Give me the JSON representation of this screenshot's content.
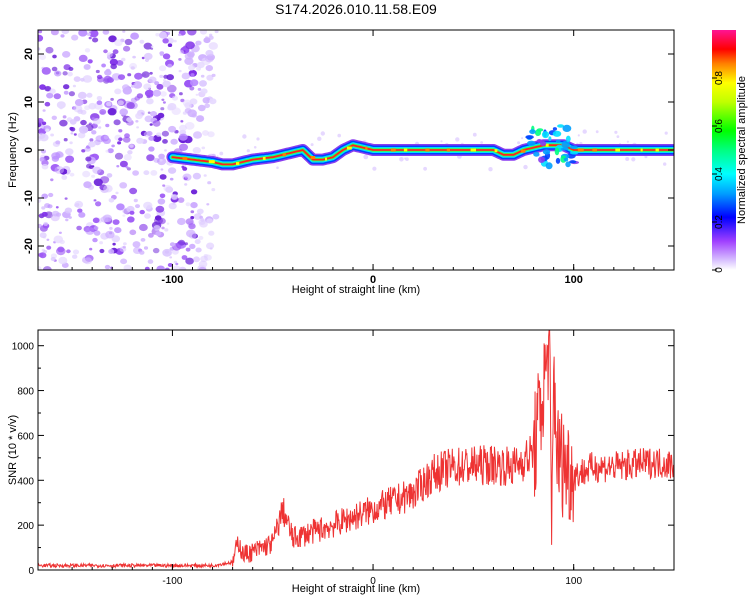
{
  "chart_data": [
    {
      "type": "heatmap",
      "title": "S174.2026.010.11.58.E09",
      "xlabel": "Height of straight line (km)",
      "ylabel": "Frequency (Hz)",
      "xlim": [
        -167,
        150
      ],
      "ylim": [
        -25,
        25
      ],
      "xticks": [
        -100,
        0,
        100
      ],
      "yticks": [
        -20,
        -10,
        0,
        10,
        20
      ],
      "colorbar": {
        "label": "Normalized spectral amplitude",
        "range": [
          0,
          1
        ],
        "ticks": [
          0.0,
          0.2,
          0.4,
          0.6,
          0.8
        ]
      },
      "noise_region_x": [
        -167,
        -80
      ],
      "signal_track": {
        "x": [
          -100,
          -90,
          -80,
          -75,
          -70,
          -60,
          -50,
          -40,
          -35,
          -30,
          -25,
          -20,
          -15,
          -10,
          -5,
          0,
          10,
          20,
          40,
          60,
          65,
          70,
          75,
          80,
          85,
          90,
          95,
          100,
          110,
          120,
          150
        ],
        "freq": [
          -1.5,
          -2,
          -2.5,
          -3,
          -3,
          -2,
          -1.5,
          -0.5,
          0,
          -2,
          -2,
          -1.5,
          0,
          1,
          0.5,
          0,
          0,
          0,
          0,
          0,
          -1,
          -1,
          0,
          0.5,
          1,
          1,
          1,
          0,
          0,
          0,
          0
        ]
      }
    },
    {
      "type": "line",
      "xlabel": "Height of straight line (km)",
      "ylabel": "SNR (10 * v/v)",
      "xlim": [
        -167,
        150
      ],
      "ylim": [
        0,
        1070
      ],
      "xticks": [
        -100,
        0,
        100
      ],
      "yticks": [
        0,
        200,
        400,
        600,
        800,
        1000
      ],
      "color": "#ee3333",
      "series": [
        {
          "name": "SNR",
          "x": [
            -167,
            -150,
            -120,
            -100,
            -80,
            -70,
            -67,
            -65,
            -60,
            -50,
            -45,
            -40,
            -20,
            0,
            20,
            30,
            40,
            60,
            70,
            80,
            85,
            88,
            89,
            90,
            92,
            95,
            100,
            110,
            120,
            130,
            140,
            150
          ],
          "values": [
            20,
            20,
            20,
            20,
            20,
            35,
            130,
            70,
            80,
            120,
            270,
            140,
            200,
            270,
            340,
            430,
            460,
            470,
            460,
            520,
            800,
            1050,
            60,
            900,
            500,
            480,
            420,
            460,
            460,
            470,
            480,
            470
          ]
        }
      ]
    }
  ]
}
